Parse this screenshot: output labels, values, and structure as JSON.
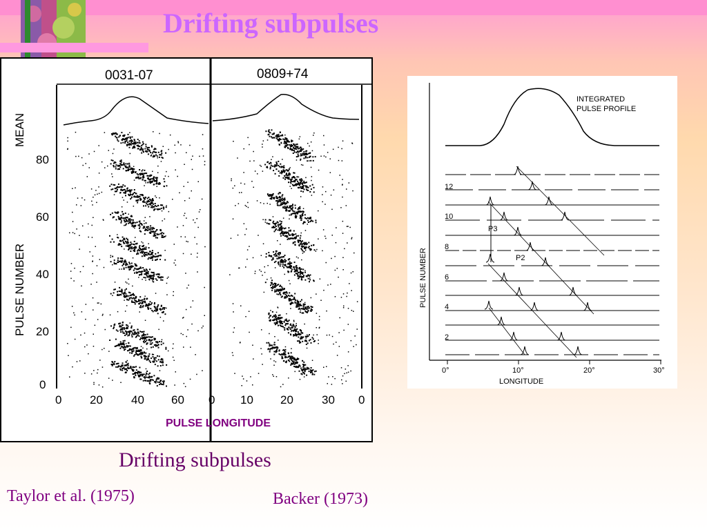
{
  "slide": {
    "title": "Drifting subpulses",
    "caption": "Drifting subpulses",
    "citation_left": "Taylor et al. (1975)",
    "citation_right": "Backer (1973)",
    "pulse_longitude_label": "PULSE LONGITUDE"
  },
  "left_figure": {
    "panel1_title": "0031-07",
    "panel2_title": "0809+74",
    "mean_label": "MEAN",
    "y_axis_label": "PULSE  NUMBER",
    "y_ticks": [
      "80",
      "60",
      "40",
      "20",
      "0"
    ],
    "x_ticks_panel1": [
      "0",
      "20",
      "40",
      "60"
    ],
    "x_ticks_panel2": [
      "0",
      "10",
      "20",
      "30",
      "0"
    ]
  },
  "right_figure": {
    "profile_label_line1": "INTEGRATED",
    "profile_label_line2": "PULSE PROFILE",
    "y_axis_label": "PULSE NUMBER",
    "x_axis_label": "LONGITUDE",
    "y_ticks": [
      "12",
      "10",
      "8",
      "6",
      "4",
      "2"
    ],
    "x_ticks": [
      "0°",
      "10°",
      "20°",
      "30°"
    ],
    "p3_label": "P3",
    "p2_label": "P2"
  },
  "colors": {
    "title": "#cc66ff",
    "text": "#800080",
    "top_band": "#ff8fd0"
  }
}
